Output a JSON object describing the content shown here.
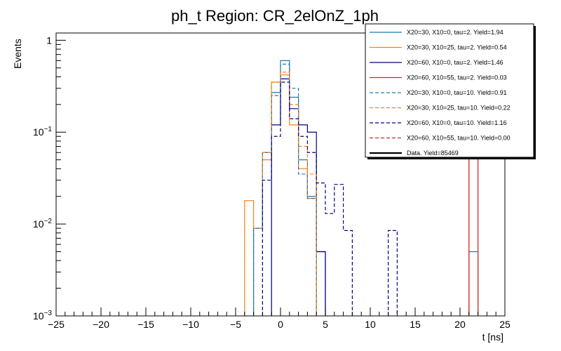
{
  "chart_data": {
    "type": "step-histogram",
    "title": "ph_t Region: CR_2elOnZ_1ph",
    "xlabel": "t [ns]",
    "ylabel": "Events",
    "yscale": "log",
    "xlim": [
      -25,
      25
    ],
    "ylim": [
      0.001,
      1.2
    ],
    "bin_width": 1,
    "x_ticks": [
      -25,
      -20,
      -15,
      -10,
      -5,
      0,
      5,
      10,
      15,
      20,
      25
    ],
    "x_tick_labels": [
      "−25",
      "−20",
      "−15",
      "−10",
      "−5",
      "0",
      "5",
      "10",
      "15",
      "20",
      "25"
    ],
    "y_ticks": [
      {
        "value": 1,
        "base": "1",
        "exp": ""
      },
      {
        "value": 0.1,
        "base": "10",
        "exp": "−1"
      },
      {
        "value": 0.01,
        "base": "10",
        "exp": "−2"
      },
      {
        "value": 0.001,
        "base": "10",
        "exp": "−3"
      }
    ],
    "series": [
      {
        "name": "X20=30, X10=0, tau=2. Yield=1.94",
        "color": "#1f77b4",
        "dashed": false,
        "bins": [
          [
            -3,
            0.009
          ],
          [
            -2,
            0.06
          ],
          [
            -1,
            0.27
          ],
          [
            0,
            0.6
          ],
          [
            1,
            0.24
          ],
          [
            2,
            0.05
          ],
          [
            3,
            0.02
          ],
          [
            4,
            0.005
          ],
          [
            21,
            0.005
          ]
        ]
      },
      {
        "name": "X20=30, X10=25, tau=2. Yield=0.54",
        "color": "#ff7f0e",
        "dashed": false,
        "bins": [
          [
            -4,
            0.018
          ],
          [
            -3,
            0.009
          ],
          [
            -2,
            0.05
          ],
          [
            -1,
            0.35
          ],
          [
            0,
            0.42
          ],
          [
            1,
            0.12
          ],
          [
            2,
            0.04
          ],
          [
            3,
            0.019
          ],
          [
            21,
            0.27
          ]
        ]
      },
      {
        "name": "X20=60, X10=0, tau=2. Yield=1.46",
        "color": "#000080",
        "dashed": false,
        "bins": [
          [
            -1,
            0.12
          ],
          [
            0,
            0.38
          ],
          [
            1,
            0.18
          ],
          [
            2,
            0.12
          ],
          [
            3,
            0.1
          ],
          [
            4,
            0.005
          ]
        ]
      },
      {
        "name": "X20=60, X10=55, tau=2. Yield=0.03",
        "color": "#d62728",
        "dashed": false,
        "bins": [
          [
            21,
            0.1
          ]
        ]
      },
      {
        "name": "X20=30, X10=0, tau=10. Yield=0.91",
        "color": "#1f77b4",
        "dashed": true,
        "bins": [
          [
            -3,
            0.009
          ],
          [
            -2,
            0.06
          ],
          [
            -1,
            0.25
          ],
          [
            0,
            0.55
          ],
          [
            1,
            0.3
          ],
          [
            2,
            0.035
          ],
          [
            3,
            0.019
          ]
        ]
      },
      {
        "name": "X20=30, X10=25, tau=10. Yield=0.22",
        "color": "#ff7f0e",
        "dashed": true,
        "bins": [
          [
            -2,
            0.06
          ],
          [
            -1,
            0.35
          ],
          [
            0,
            0.45
          ],
          [
            1,
            0.2
          ],
          [
            2,
            0.07
          ],
          [
            3,
            0.035
          ]
        ]
      },
      {
        "name": "X20=60, X10=0, tau=10. Yield=1.16",
        "color": "#000080",
        "dashed": true,
        "bins": [
          [
            -2,
            0.03
          ],
          [
            -1,
            0.09
          ],
          [
            0,
            0.35
          ],
          [
            1,
            0.14
          ],
          [
            2,
            0.09
          ],
          [
            3,
            0.06
          ],
          [
            4,
            0.028
          ],
          [
            5,
            0.013
          ],
          [
            6,
            0.027
          ],
          [
            7,
            0.0085
          ],
          [
            12,
            0.0085
          ]
        ]
      },
      {
        "name": "X20=60, X10=55, tau=10. Yield=0.00",
        "color": "#d62728",
        "dashed": true,
        "bins": []
      },
      {
        "name": "Data. Yield=85469",
        "color": "#000000",
        "dashed": false,
        "bold": true,
        "bins": []
      }
    ],
    "legend_position": "top-right"
  }
}
